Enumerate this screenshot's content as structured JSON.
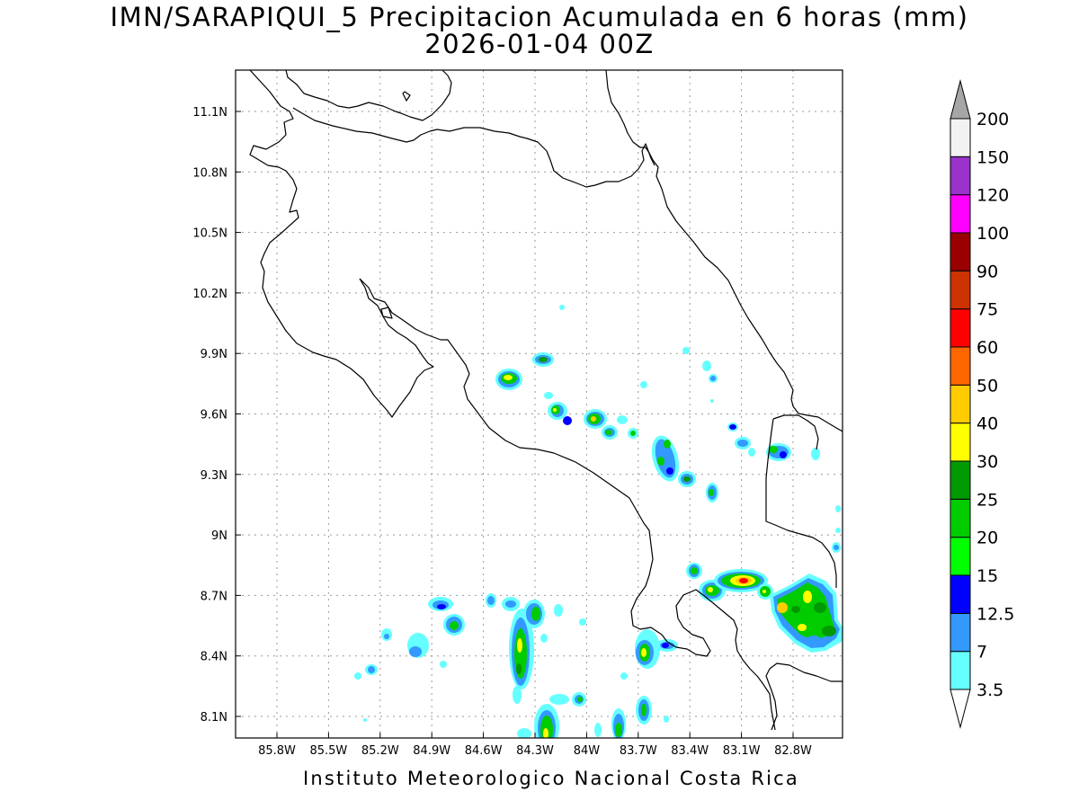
{
  "title": {
    "line1": "IMN/SARAPIQUI_5 Precipitacion Acumulada en 6 horas (mm)",
    "line2": "2026-01-04 00Z"
  },
  "credit": "Instituto Meteorologico Nacional Costa Rica",
  "axes": {
    "lon_labels": [
      "85.8W",
      "85.5W",
      "85.2W",
      "84.9W",
      "84.6W",
      "84.3W",
      "84W",
      "83.7W",
      "83.4W",
      "83.1W",
      "82.8W"
    ],
    "lat_labels": [
      "11.1N",
      "10.8N",
      "10.5N",
      "10.2N",
      "9.9N",
      "9.6N",
      "9.3N",
      "9N",
      "8.7N",
      "8.4N",
      "8.1N"
    ],
    "grid": true
  },
  "colorbar": {
    "units": "mm",
    "levels": [
      "3.5",
      "7",
      "12.5",
      "15",
      "20",
      "25",
      "30",
      "40",
      "50",
      "60",
      "75",
      "90",
      "100",
      "120",
      "150",
      "200"
    ],
    "colors": [
      "#ffffff",
      "#66ffff",
      "#3399ff",
      "#0000ff",
      "#00ff00",
      "#00cc00",
      "#009900",
      "#ffff00",
      "#ffcc00",
      "#ff6600",
      "#ff0000",
      "#cc3300",
      "#990000",
      "#ff00ff",
      "#9933cc",
      "#f2f2f2",
      "#a6a6a6"
    ]
  },
  "colors": {
    "coastline": "#000000",
    "grid": "#999999",
    "frame": "#000000"
  }
}
